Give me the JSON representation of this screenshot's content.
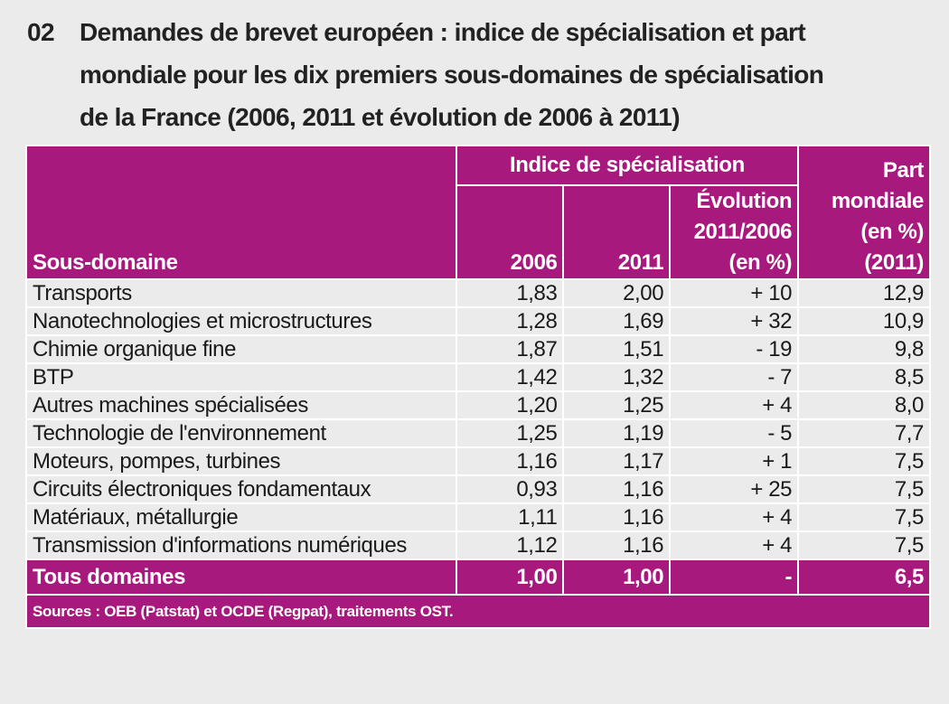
{
  "title": {
    "number": "02",
    "lines": [
      "Demandes de brevet européen : indice de spécialisation et part",
      "mondiale pour les dix premiers sous-domaines de spécialisation",
      "de la France (2006, 2011 et évolution de 2006 à 2011)"
    ]
  },
  "headers": {
    "sous_domaine": "Sous-domaine",
    "indice_group": "Indice de spécialisation",
    "y2006": "2006",
    "y2011": "2011",
    "evolution": [
      "Évolution",
      "2011/2006",
      "(en %)"
    ],
    "part": [
      "Part",
      "mondiale",
      "(en %)",
      "(2011)"
    ]
  },
  "rows": [
    {
      "name": "Transports",
      "v2006": "1,83",
      "v2011": "2,00",
      "evo": "+ 10",
      "part": "12,9"
    },
    {
      "name": "Nanotechnologies et microstructures",
      "v2006": "1,28",
      "v2011": "1,69",
      "evo": "+ 32",
      "part": "10,9"
    },
    {
      "name": "Chimie organique fine",
      "v2006": "1,87",
      "v2011": "1,51",
      "evo": "- 19",
      "part": "9,8"
    },
    {
      "name": "BTP",
      "v2006": "1,42",
      "v2011": "1,32",
      "evo": "- 7",
      "part": "8,5"
    },
    {
      "name": "Autres machines spécialisées",
      "v2006": "1,20",
      "v2011": "1,25",
      "evo": "+ 4",
      "part": "8,0"
    },
    {
      "name": "Technologie de l'environnement",
      "v2006": "1,25",
      "v2011": "1,19",
      "evo": "- 5",
      "part": "7,7"
    },
    {
      "name": "Moteurs, pompes, turbines",
      "v2006": "1,16",
      "v2011": "1,17",
      "evo": "+ 1",
      "part": "7,5"
    },
    {
      "name": "Circuits électroniques fondamentaux",
      "v2006": "0,93",
      "v2011": "1,16",
      "evo": "+ 25",
      "part": "7,5"
    },
    {
      "name": "Matériaux, métallurgie",
      "v2006": "1,11",
      "v2011": "1,16",
      "evo": "+ 4",
      "part": "7,5"
    },
    {
      "name": "Transmission d'informations numériques",
      "v2006": "1,12",
      "v2011": "1,16",
      "evo": "+ 4",
      "part": "7,5"
    }
  ],
  "total": {
    "name": "Tous domaines",
    "v2006": "1,00",
    "v2011": "1,00",
    "evo": "-",
    "part": "6,5"
  },
  "sources": "Sources : OEB (Patstat) et OCDE (Regpat), traitements OST.",
  "colors": {
    "accent": "#a8197e",
    "background": "#ebebeb"
  }
}
